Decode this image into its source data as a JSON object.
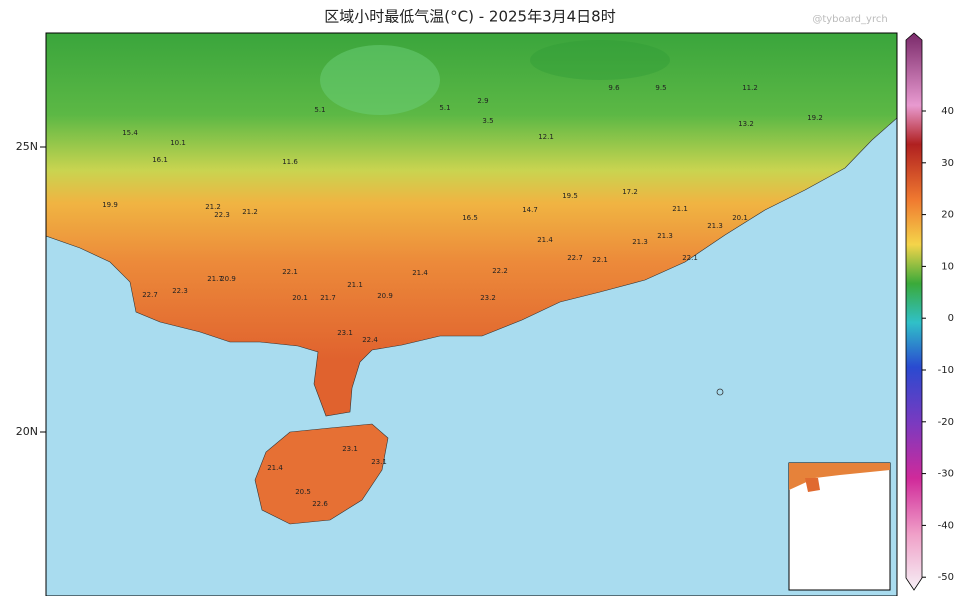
{
  "title": "区域小时最低气温(°C) - 2025年3月4日8时",
  "watermark": "@tyboard_yrch",
  "lat_labels": [
    "25N",
    "20N"
  ],
  "colorbar": {
    "ticks": [
      40,
      30,
      20,
      10,
      0,
      -10,
      -20,
      -30,
      -40,
      -50
    ]
  },
  "stations": [
    21.2,
    22.3,
    22.3,
    22.7,
    21.7,
    20.9,
    22.1,
    20.1,
    21.7,
    21.1,
    20.9,
    21.4,
    23.2,
    22.2,
    21.4,
    22.7,
    22.1,
    21.3,
    21.3,
    22.1,
    21.1,
    21.3,
    20.1,
    21.2,
    21.4,
    20.5,
    22.6,
    23.1,
    23.1,
    23.1,
    22.4,
    5.1,
    5.1,
    2.9,
    3.5,
    12.1,
    9.6,
    9.5,
    11.2,
    19.2,
    13.2,
    15.4,
    10.1,
    16.1,
    19.9,
    11.6,
    16.5,
    14.7,
    19.5,
    17.2
  ]
}
